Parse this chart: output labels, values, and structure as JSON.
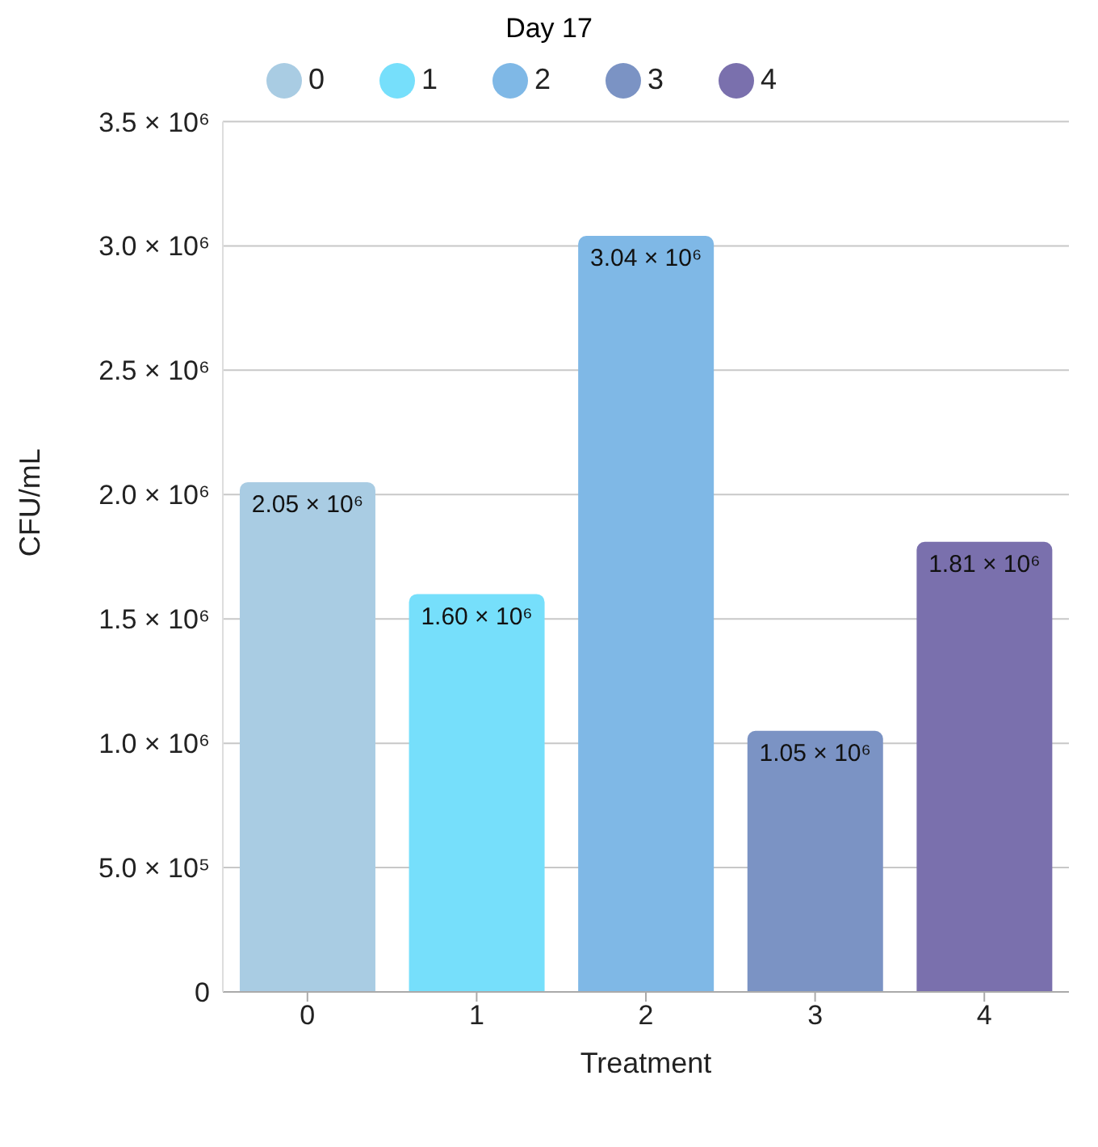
{
  "chart_data": {
    "type": "bar",
    "title": "Day 17",
    "xlabel": "Treatment",
    "ylabel": "CFU/mL",
    "categories": [
      "0",
      "1",
      "2",
      "3",
      "4"
    ],
    "stacked": true,
    "series": [
      {
        "name": "0",
        "color": "#a9cce3",
        "values": [
          2050000,
          null,
          null,
          null,
          null
        ],
        "value_labels": [
          "2.05 × 10⁶",
          null,
          null,
          null,
          null
        ]
      },
      {
        "name": "1",
        "color": "#76dffb",
        "values": [
          null,
          1600000,
          null,
          null,
          null
        ],
        "value_labels": [
          null,
          "1.60 × 10⁶",
          null,
          null,
          null
        ]
      },
      {
        "name": "2",
        "color": "#7fb8e6",
        "values": [
          null,
          null,
          3040000,
          null,
          null
        ],
        "value_labels": [
          null,
          null,
          "3.04 × 10⁶",
          null,
          null
        ]
      },
      {
        "name": "3",
        "color": "#7b93c4",
        "values": [
          null,
          null,
          null,
          1050000,
          null
        ],
        "value_labels": [
          null,
          null,
          null,
          "1.05 × 10⁶",
          null
        ]
      },
      {
        "name": "4",
        "color": "#7a70ad",
        "values": [
          null,
          null,
          null,
          null,
          1810000
        ],
        "value_labels": [
          null,
          null,
          null,
          null,
          "1.81 × 10⁶"
        ]
      }
    ],
    "ylim": [
      0,
      3500000
    ],
    "yticks": [
      0,
      {
        "value": 500000,
        "label": "5.0 × 10⁵"
      },
      {
        "value": 1000000,
        "label": "1.0 × 10⁶"
      },
      {
        "value": 1500000,
        "label": "1.5 × 10⁶"
      },
      {
        "value": 2000000,
        "label": "2.0 × 10⁶"
      },
      {
        "value": 2500000,
        "label": "2.5 × 10⁶"
      },
      {
        "value": 3000000,
        "label": "3.0 × 10⁶"
      },
      {
        "value": 3500000,
        "label": "3.5 × 10⁶"
      }
    ],
    "grid": "y",
    "legend": "top"
  }
}
